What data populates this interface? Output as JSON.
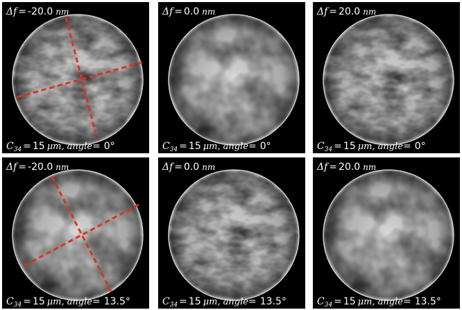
{
  "panels": [
    {
      "top": {
        "symbol": "Δf",
        "eq": "=",
        "value": "-20.0",
        "unit": "nm"
      },
      "bottom": {
        "symbol": "C",
        "sub": "34",
        "eq": "=",
        "value": "15",
        "unit": "μm,",
        "angle_word": "angle",
        "angle_eq": "=",
        "angle": "0°"
      }
    },
    {
      "top": {
        "symbol": "Δf",
        "eq": "=",
        "value": "0.0",
        "unit": "nm"
      },
      "bottom": {
        "symbol": "C",
        "sub": "34",
        "eq": "=",
        "value": "15",
        "unit": "μm,",
        "angle_word": "angle",
        "angle_eq": "=",
        "angle": "0°"
      }
    },
    {
      "top": {
        "symbol": "Δf",
        "eq": "=",
        "value": "20.0",
        "unit": "nm"
      },
      "bottom": {
        "symbol": "C",
        "sub": "34",
        "eq": "=",
        "value": "15",
        "unit": "μm,",
        "angle_word": "angle",
        "angle_eq": "=",
        "angle": "0°"
      }
    },
    {
      "top": {
        "symbol": "Δf",
        "eq": "=",
        "value": "-20.0",
        "unit": "nm"
      },
      "bottom": {
        "symbol": "C",
        "sub": "34",
        "eq": "=",
        "value": "15",
        "unit": "μm,",
        "angle_word": "angle",
        "angle_eq": "=",
        "angle": "13.5°"
      }
    },
    {
      "top": {
        "symbol": "Δf",
        "eq": "=",
        "value": "0.0",
        "unit": "nm"
      },
      "bottom": {
        "symbol": "C",
        "sub": "34",
        "eq": "=",
        "value": "15",
        "unit": "μm,",
        "angle_word": "angle",
        "angle_eq": "=",
        "angle": "13.5°"
      }
    },
    {
      "top": {
        "symbol": "Δf",
        "eq": "=",
        "value": "20.0",
        "unit": "nm"
      },
      "bottom": {
        "symbol": "C",
        "sub": "34",
        "eq": "=",
        "value": "15",
        "unit": "μm,",
        "angle_word": "angle",
        "angle_eq": "=",
        "angle": "13.5°"
      }
    }
  ]
}
